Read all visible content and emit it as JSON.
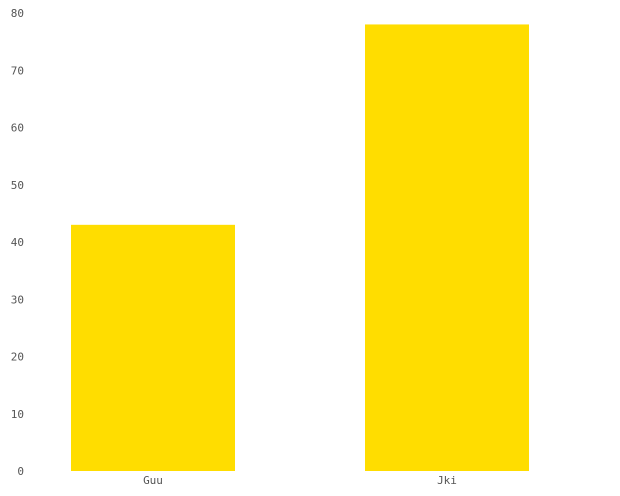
{
  "chart_data": {
    "type": "bar",
    "categories": [
      "Guu",
      "Jki"
    ],
    "values": [
      43,
      78
    ],
    "title": "",
    "xlabel": "",
    "ylabel": "",
    "ylim": [
      0,
      80
    ],
    "yticks": [
      0,
      10,
      20,
      30,
      40,
      50,
      60,
      70,
      80
    ],
    "grid": false,
    "legend": "none",
    "bar_color": "#FFDD00",
    "axis_text_color": "#555555"
  }
}
